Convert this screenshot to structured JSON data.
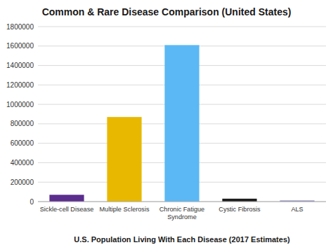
{
  "chart_data": {
    "type": "bar",
    "title": "Common & Rare Disease Comparison (United States)",
    "xlabel": "U.S. Population Living With Each Disease (2017 Estimates)",
    "categories": [
      "Sickle-cell Disease",
      "Multiple Sclerosis",
      "Chronic Fatigue\nSyndrome",
      "Cystic Fibrosis",
      "ALS"
    ],
    "values": [
      70000,
      870000,
      1610000,
      30000,
      12000
    ],
    "colors": [
      "#5B2D8E",
      "#E8B800",
      "#5BB8F5",
      "#1C1C1C",
      "#9090C0"
    ],
    "ylim": [
      0,
      1800000
    ],
    "yticks": [
      0,
      200000,
      400000,
      600000,
      800000,
      1000000,
      1200000,
      1400000,
      1600000,
      1800000
    ],
    "grid": true
  }
}
